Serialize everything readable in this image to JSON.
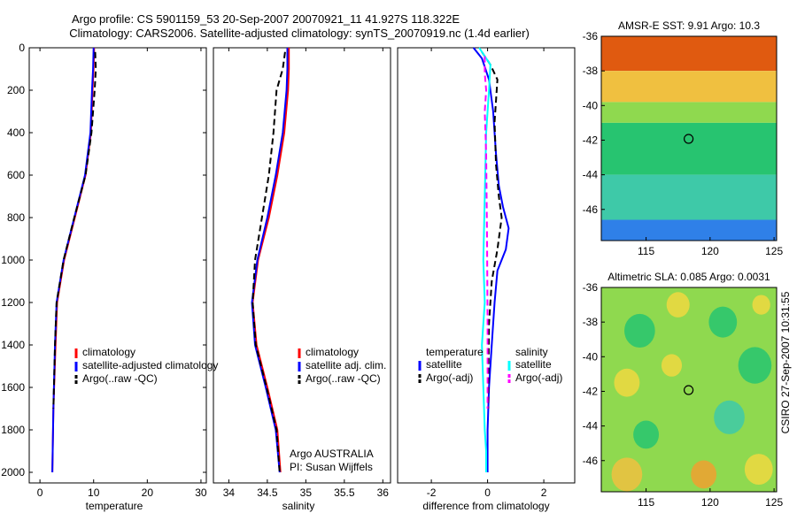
{
  "title_line1": "Argo profile: CS 5901159_53 20-Sep-2007 20070921_11 41.927S 118.322E",
  "title_line2": "Climatology: CARS2006. Satellite-adjusted climatology: synTS_20070919.nc (1.4d earlier)",
  "side_label": "CSIRO 27-Sep-2007 10:31:55",
  "colors": {
    "climatology": "#ff0000",
    "satellite": "#0000ff",
    "argo": "#000000",
    "salinity_satellite": "#00ffff",
    "salinity_argo": "#ff00ff"
  },
  "chart_data": [
    {
      "id": "temperature",
      "type": "line",
      "xlabel": "temperature",
      "ylabel": "",
      "xlim": [
        -2,
        31
      ],
      "ylim": [
        2050,
        0
      ],
      "y_reversed": true,
      "xticks": [
        0,
        10,
        20,
        30
      ],
      "xticklabels": [
        "0",
        "10",
        "20",
        "30"
      ],
      "yticks": [
        0,
        200,
        400,
        600,
        800,
        1000,
        1200,
        1400,
        1600,
        1800,
        2000
      ],
      "yticklabels": [
        "0",
        "200",
        "400",
        "600",
        "800",
        "1000",
        "1200",
        "1400",
        "1600",
        "1800",
        "2000"
      ],
      "legend": [
        "climatology",
        "satellite-adjusted climatology",
        "Argo(..raw -QC)"
      ],
      "series": [
        {
          "name": "climatology",
          "style": "solid",
          "color_key": "climatology",
          "x": [
            10.1,
            10.0,
            9.8,
            9.5,
            8.5,
            6.5,
            4.5,
            3.2,
            2.9,
            2.5,
            2.3
          ],
          "y": [
            0,
            100,
            200,
            400,
            600,
            800,
            1000,
            1200,
            1400,
            1700,
            2000
          ]
        },
        {
          "name": "satellite-adjusted climatology",
          "style": "solid",
          "color_key": "satellite",
          "x": [
            10.0,
            9.9,
            9.7,
            9.4,
            8.4,
            6.4,
            4.4,
            3.1,
            2.8,
            2.5,
            2.3
          ],
          "y": [
            0,
            100,
            200,
            400,
            600,
            800,
            1000,
            1200,
            1400,
            1700,
            2000
          ]
        },
        {
          "name": "Argo(..raw -QC)",
          "style": "dashed",
          "color_key": "argo",
          "x": [
            10.3,
            10.4,
            10.2,
            9.6,
            8.5,
            6.4,
            4.4,
            3.1,
            2.8,
            2.5
          ],
          "y": [
            20,
            100,
            200,
            400,
            600,
            800,
            1000,
            1200,
            1400,
            1700
          ]
        }
      ]
    },
    {
      "id": "salinity",
      "type": "line",
      "xlabel": "salinity",
      "ylabel": "",
      "xlim": [
        33.8,
        36.1
      ],
      "ylim": [
        2050,
        0
      ],
      "y_reversed": true,
      "xticks": [
        34,
        34.5,
        35,
        35.5,
        36
      ],
      "xticklabels": [
        "34",
        "34.5",
        "35",
        "35.5",
        "36"
      ],
      "legend": [
        "climatology",
        "satellite adj. clim.",
        "Argo(..raw -QC)"
      ],
      "annotation": [
        "Argo AUSTRALIA",
        "PI: Susan Wijffels"
      ],
      "series": [
        {
          "name": "climatology",
          "style": "solid",
          "color_key": "climatology",
          "x": [
            34.78,
            34.78,
            34.77,
            34.72,
            34.63,
            34.52,
            34.38,
            34.31,
            34.36,
            34.5,
            34.63,
            34.67
          ],
          "y": [
            0,
            100,
            200,
            400,
            600,
            800,
            1000,
            1200,
            1400,
            1600,
            1800,
            2000
          ]
        },
        {
          "name": "satellite adj. clim.",
          "style": "solid",
          "color_key": "satellite",
          "x": [
            34.76,
            34.76,
            34.75,
            34.7,
            34.61,
            34.5,
            34.37,
            34.3,
            34.34,
            34.48,
            34.61,
            34.66
          ],
          "y": [
            0,
            100,
            200,
            400,
            600,
            800,
            1000,
            1200,
            1400,
            1600,
            1800,
            2000
          ]
        },
        {
          "name": "Argo(..raw -QC)",
          "style": "dashed",
          "color_key": "argo",
          "x": [
            34.73,
            34.7,
            34.62,
            34.58,
            34.52,
            34.43,
            34.34,
            34.31,
            34.35,
            34.49,
            34.62,
            34.66
          ],
          "y": [
            20,
            100,
            200,
            400,
            600,
            800,
            1000,
            1200,
            1400,
            1600,
            1800,
            2000
          ]
        }
      ]
    },
    {
      "id": "difference",
      "type": "line",
      "xlabel": "difference from climatology",
      "ylabel": "",
      "xlim": [
        -3.2,
        3.1
      ],
      "ylim": [
        2050,
        0
      ],
      "y_reversed": true,
      "xticks": [
        -2,
        0,
        2
      ],
      "xticklabels": [
        "-2",
        "0",
        "2"
      ],
      "legend_titles": [
        "temperature",
        "salinity"
      ],
      "legend_temperature": [
        "satellite",
        "Argo(-adj)"
      ],
      "legend_salinity": [
        "satellite",
        "Argo(-adj)"
      ],
      "series": [
        {
          "name": "satellite",
          "group": "temperature",
          "style": "solid",
          "color_key": "satellite",
          "x": [
            -0.5,
            -0.2,
            0.05,
            0.2,
            0.3,
            0.4,
            0.55,
            0.75,
            0.65,
            0.35,
            0.25,
            0.15,
            0.05,
            0.0,
            0.0,
            0.0
          ],
          "y": [
            0,
            50,
            150,
            300,
            500,
            650,
            750,
            850,
            950,
            1050,
            1200,
            1400,
            1600,
            1800,
            1900,
            2000
          ]
        },
        {
          "name": "Argo(-adj)",
          "group": "temperature",
          "style": "dashed",
          "color_key": "argo",
          "x": [
            -0.2,
            0.1,
            0.35,
            0.25,
            0.3,
            0.4,
            0.5,
            0.35,
            0.15,
            0.05,
            0.02
          ],
          "y": [
            20,
            80,
            150,
            350,
            550,
            700,
            800,
            950,
            1100,
            1300,
            1700
          ]
        },
        {
          "name": "satellite",
          "group": "salinity",
          "style": "solid",
          "color_key": "salinity_satellite",
          "x": [
            -0.3,
            0.1,
            0.05,
            -0.05,
            -0.1,
            -0.15,
            -0.1,
            -0.2,
            -0.15,
            -0.1,
            -0.05,
            -0.05
          ],
          "y": [
            0,
            80,
            200,
            400,
            700,
            1000,
            1200,
            1400,
            1600,
            1800,
            1900,
            2000
          ]
        },
        {
          "name": "Argo(-adj)",
          "group": "salinity",
          "style": "dashed",
          "color_key": "salinity_argo",
          "x": [
            -0.1,
            -0.1,
            -0.05,
            -0.1,
            -0.05,
            -0.02,
            0.0,
            0.0
          ],
          "y": [
            40,
            120,
            200,
            300,
            500,
            900,
            1300,
            1700
          ]
        }
      ]
    },
    {
      "id": "sst_map",
      "type": "heatmap",
      "title": "AMSR-E SST: 9.91 Argo: 10.3",
      "xlim": [
        111.5,
        125.2
      ],
      "ylim": [
        -47.8,
        -36
      ],
      "xticks": [
        115,
        120,
        125
      ],
      "xticklabels": [
        "115",
        "120",
        "125"
      ],
      "yticks": [
        -36,
        -38,
        -40,
        -42,
        -44,
        -46
      ],
      "yticklabels": [
        "-36",
        "-38",
        "-40",
        "-42",
        "-44",
        "-46"
      ],
      "marker": {
        "lon": 118.322,
        "lat": -41.927
      },
      "bands": [
        {
          "lat_top": -36.0,
          "lat_bottom": -38.0,
          "color": "#e05a10"
        },
        {
          "lat_top": -38.0,
          "lat_bottom": -39.8,
          "color": "#f0c040"
        },
        {
          "lat_top": -39.8,
          "lat_bottom": -41.0,
          "color": "#8fd94f"
        },
        {
          "lat_top": -41.0,
          "lat_bottom": -44.0,
          "color": "#27c470"
        },
        {
          "lat_top": -44.0,
          "lat_bottom": -46.6,
          "color": "#3ec9a8"
        },
        {
          "lat_top": -46.6,
          "lat_bottom": -47.8,
          "color": "#2f80e8"
        }
      ]
    },
    {
      "id": "sla_map",
      "type": "heatmap",
      "title": "Altimetric SLA: 0.085 Argo: 0.0031",
      "xlim": [
        111.5,
        125.2
      ],
      "ylim": [
        -47.8,
        -36
      ],
      "xticks": [
        115,
        120,
        125
      ],
      "xticklabels": [
        "115",
        "120",
        "125"
      ],
      "yticks": [
        -36,
        -38,
        -40,
        -42,
        -44,
        -46
      ],
      "yticklabels": [
        "-36",
        "-38",
        "-40",
        "-42",
        "-44",
        "-46"
      ],
      "marker": {
        "lon": 118.322,
        "lat": -41.927
      },
      "background": "#8fd94f",
      "blobs": [
        {
          "lon": 114.5,
          "lat": -38.5,
          "r": 1.2,
          "color": "#27c470"
        },
        {
          "lon": 121.0,
          "lat": -38.0,
          "r": 1.1,
          "color": "#27c470"
        },
        {
          "lon": 123.5,
          "lat": -40.5,
          "r": 1.3,
          "color": "#27c470"
        },
        {
          "lon": 113.5,
          "lat": -41.5,
          "r": 1.0,
          "color": "#f0d840"
        },
        {
          "lon": 117.5,
          "lat": -37.0,
          "r": 0.9,
          "color": "#f0d840"
        },
        {
          "lon": 121.5,
          "lat": -43.5,
          "r": 1.2,
          "color": "#3ec9a8"
        },
        {
          "lon": 115.0,
          "lat": -44.5,
          "r": 1.0,
          "color": "#27c470"
        },
        {
          "lon": 113.5,
          "lat": -46.8,
          "r": 1.2,
          "color": "#f0c040"
        },
        {
          "lon": 119.5,
          "lat": -46.8,
          "r": 1.0,
          "color": "#f0a030"
        },
        {
          "lon": 123.8,
          "lat": -46.5,
          "r": 1.1,
          "color": "#f0d840"
        },
        {
          "lon": 117.0,
          "lat": -40.5,
          "r": 0.8,
          "color": "#f0d840"
        },
        {
          "lon": 124.0,
          "lat": -37.0,
          "r": 0.7,
          "color": "#f0d840"
        }
      ]
    }
  ]
}
